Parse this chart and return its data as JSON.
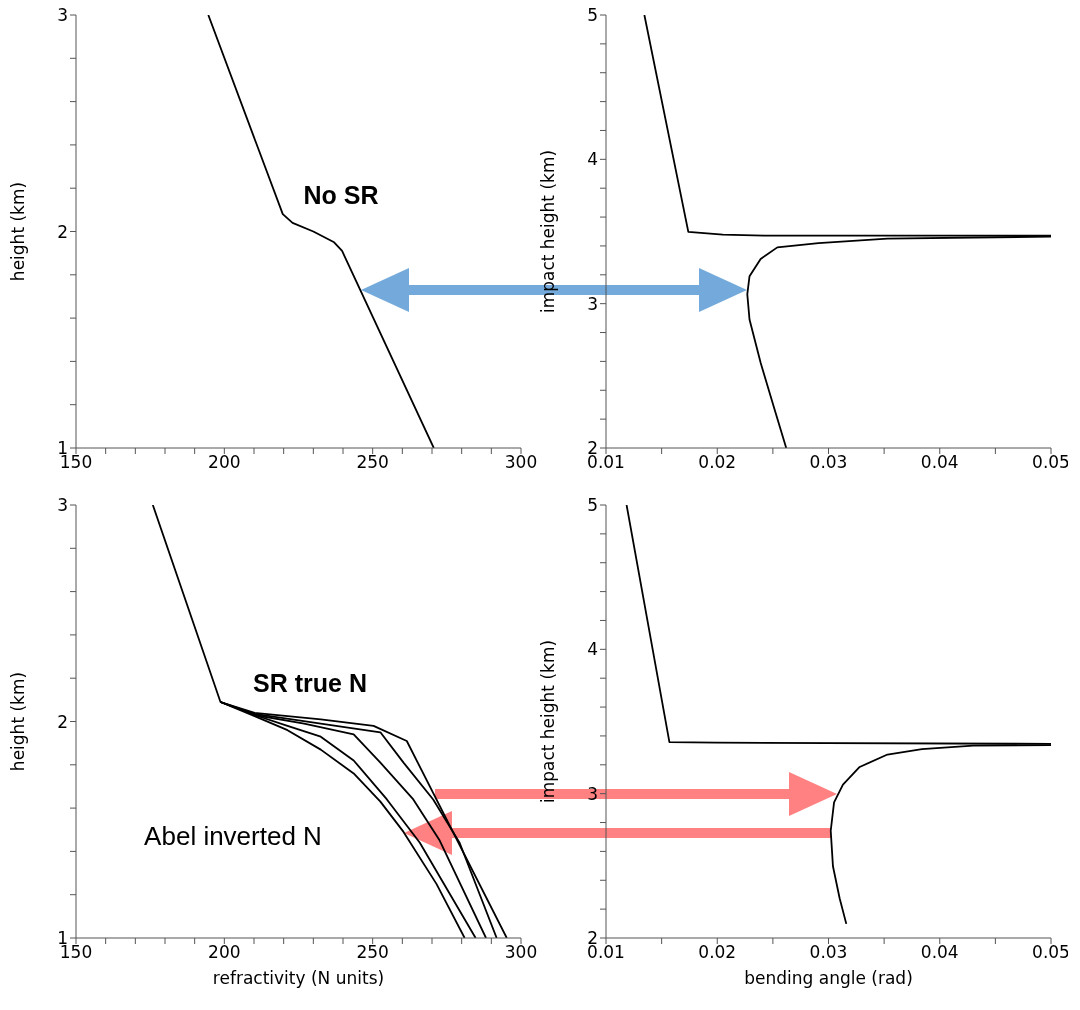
{
  "chart_data": [
    {
      "type": "line",
      "ylabel": "height (km)",
      "xlim": [
        150,
        300
      ],
      "ylim": [
        1,
        3
      ],
      "xticks": [
        150,
        {
          "value": 160,
          "label": null
        },
        {
          "value": 170,
          "label": null
        },
        {
          "value": 180,
          "label": null
        },
        {
          "value": 190,
          "label": null
        },
        200,
        {
          "value": 210,
          "label": null
        },
        {
          "value": 220,
          "label": null
        },
        {
          "value": 230,
          "label": null
        },
        {
          "value": 240,
          "label": null
        },
        250,
        {
          "value": 260,
          "label": null
        },
        {
          "value": 270,
          "label": null
        },
        {
          "value": 280,
          "label": null
        },
        {
          "value": 290,
          "label": null
        },
        300
      ],
      "yticks": [
        1,
        {
          "value": 1.2,
          "label": null
        },
        {
          "value": 1.4,
          "label": null
        },
        {
          "value": 1.6,
          "label": null
        },
        {
          "value": 1.8,
          "label": null
        },
        2,
        {
          "value": 2.2,
          "label": null
        },
        {
          "value": 2.4,
          "label": null
        },
        {
          "value": 2.6,
          "label": null
        },
        {
          "value": 2.8,
          "label": null
        },
        3
      ],
      "annotations": [
        "No SR"
      ],
      "series": [
        {
          "color": "#000000",
          "x": [
            194.6,
            219.7,
            223,
            230,
            237,
            239.7,
            270.6
          ],
          "values": [
            3,
            2.08,
            2.04,
            2.0,
            1.95,
            1.91,
            1.0
          ]
        }
      ]
    },
    {
      "type": "line",
      "ylabel": "impact height (km)",
      "xlim": [
        0.01,
        0.05
      ],
      "ylim": [
        2,
        5
      ],
      "xticks": [
        0.01,
        {
          "value": 0.015,
          "label": null
        },
        0.02,
        {
          "value": 0.025,
          "label": null
        },
        0.03,
        {
          "value": 0.035,
          "label": null
        },
        0.04,
        {
          "value": 0.045,
          "label": null
        },
        0.05
      ],
      "yticks": [
        2,
        {
          "value": 2.2,
          "label": null
        },
        {
          "value": 2.4,
          "label": null
        },
        {
          "value": 2.6,
          "label": null
        },
        {
          "value": 2.8,
          "label": null
        },
        3,
        {
          "value": 3.2,
          "label": null
        },
        {
          "value": 3.4,
          "label": null
        },
        {
          "value": 3.6,
          "label": null
        },
        {
          "value": 3.8,
          "label": null
        },
        4,
        {
          "value": 4.2,
          "label": null
        },
        {
          "value": 4.4,
          "label": null
        },
        {
          "value": 4.6,
          "label": null
        },
        {
          "value": 4.8,
          "label": null
        },
        5
      ],
      "series": [
        {
          "color": "#000000",
          "x": [
            0.01345,
            0.0174,
            0.0205,
            0.0242,
            0.05
          ],
          "values": [
            5,
            3.497,
            3.479,
            3.472,
            3.472
          ]
        },
        {
          "color": "#000000",
          "x": [
            0.05,
            0.0353,
            0.0291,
            0.0254,
            0.0239,
            0.0229,
            0.0227,
            0.0229,
            0.0239,
            0.0251,
            0.0262
          ],
          "values": [
            3.465,
            3.45,
            3.42,
            3.39,
            3.31,
            3.19,
            3.065,
            2.89,
            2.59,
            2.28,
            2.0
          ]
        }
      ]
    },
    {
      "type": "line",
      "xlabel": "refractivity (N units)",
      "ylabel": "height (km)",
      "xlim": [
        150,
        300
      ],
      "ylim": [
        1,
        3
      ],
      "xticks": [
        150,
        {
          "value": 160,
          "label": null
        },
        {
          "value": 170,
          "label": null
        },
        {
          "value": 180,
          "label": null
        },
        {
          "value": 190,
          "label": null
        },
        200,
        {
          "value": 210,
          "label": null
        },
        {
          "value": 220,
          "label": null
        },
        {
          "value": 230,
          "label": null
        },
        {
          "value": 240,
          "label": null
        },
        250,
        {
          "value": 260,
          "label": null
        },
        {
          "value": 270,
          "label": null
        },
        {
          "value": 280,
          "label": null
        },
        {
          "value": 290,
          "label": null
        },
        300
      ],
      "yticks": [
        1,
        {
          "value": 1.2,
          "label": null
        },
        {
          "value": 1.4,
          "label": null
        },
        {
          "value": 1.6,
          "label": null
        },
        {
          "value": 1.8,
          "label": null
        },
        2,
        {
          "value": 2.2,
          "label": null
        },
        {
          "value": 2.4,
          "label": null
        },
        {
          "value": 2.6,
          "label": null
        },
        {
          "value": 2.8,
          "label": null
        },
        3
      ],
      "annotations": [
        "SR true N",
        "Abel inverted N"
      ],
      "series": [
        {
          "color": "#000000",
          "x": [
            175.9,
            198.7,
            210.2,
            232.5,
            250.3,
            261.5,
            295.2
          ],
          "values": [
            3,
            2.09,
            2.04,
            2.01,
            1.98,
            1.91,
            1.0
          ]
        },
        {
          "color": "#000000",
          "x": [
            198.7,
            210.2,
            226.9,
            243.6,
            252.6,
            263.7,
            272.6,
            288.2
          ],
          "values": [
            2.09,
            2.03,
            1.99,
            1.94,
            1.81,
            1.64,
            1.45,
            1.0
          ]
        },
        {
          "color": "#000000",
          "x": [
            198.7,
            210.2,
            232.5,
            252.6,
            260.4,
            270.4,
            279.3,
            291.8
          ],
          "values": [
            2.09,
            2.035,
            1.99,
            1.95,
            1.81,
            1.64,
            1.44,
            1.0
          ]
        },
        {
          "color": "#000000",
          "x": [
            198.7,
            210.2,
            221.3,
            232.5,
            243.6,
            254.8,
            265.9,
            284.7
          ],
          "values": [
            2.09,
            2.03,
            1.98,
            1.93,
            1.82,
            1.64,
            1.44,
            1.0
          ]
        },
        {
          "color": "#000000",
          "x": [
            198.7,
            210.2,
            221.3,
            232.5,
            243.6,
            252.6,
            260.4,
            271.5,
            281
          ],
          "values": [
            2.09,
            2.025,
            1.96,
            1.87,
            1.76,
            1.63,
            1.49,
            1.25,
            1.0
          ]
        }
      ]
    },
    {
      "type": "line",
      "xlabel": "bending angle (rad)",
      "ylabel": "impact height (km)",
      "xlim": [
        0.01,
        0.05
      ],
      "ylim": [
        2,
        5
      ],
      "xticks": [
        0.01,
        {
          "value": 0.015,
          "label": null
        },
        0.02,
        {
          "value": 0.025,
          "label": null
        },
        0.03,
        {
          "value": 0.035,
          "label": null
        },
        0.04,
        {
          "value": 0.045,
          "label": null
        },
        0.05
      ],
      "yticks": [
        2,
        {
          "value": 2.2,
          "label": null
        },
        {
          "value": 2.4,
          "label": null
        },
        {
          "value": 2.6,
          "label": null
        },
        {
          "value": 2.8,
          "label": null
        },
        3,
        {
          "value": 3.2,
          "label": null
        },
        {
          "value": 3.4,
          "label": null
        },
        {
          "value": 3.6,
          "label": null
        },
        {
          "value": 3.8,
          "label": null
        },
        4,
        {
          "value": 4.2,
          "label": null
        },
        {
          "value": 4.4,
          "label": null
        },
        {
          "value": 4.6,
          "label": null
        },
        {
          "value": 4.8,
          "label": null
        },
        5
      ],
      "series": [
        {
          "color": "#000000",
          "x": [
            0.01185,
            0.0157,
            0.0199,
            0.05
          ],
          "values": [
            5,
            3.357,
            3.353,
            3.345
          ]
        },
        {
          "color": "#000000",
          "x": [
            0.05,
            0.043,
            0.0384,
            0.0353,
            0.0328,
            0.0313,
            0.0305,
            0.0302,
            0.0304,
            0.031,
            0.0316
          ],
          "values": [
            3.337,
            3.333,
            3.308,
            3.271,
            3.185,
            3.062,
            2.94,
            2.743,
            2.497,
            2.275,
            2.098
          ]
        }
      ]
    }
  ]
}
